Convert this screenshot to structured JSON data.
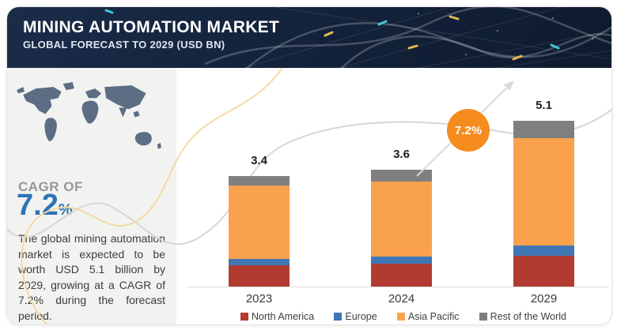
{
  "header": {
    "title": "MINING AUTOMATION MARKET",
    "subtitle": "GLOBAL FORECAST TO 2029 (USD BN)"
  },
  "sidebar": {
    "cagr_label": "CAGR OF",
    "cagr_value": "7.2",
    "cagr_unit": "%",
    "description": "The global mining automation market is expected to be worth USD 5.1 billion by 2029, growing at a CAGR of 7.2% during the forecast period."
  },
  "growth_badge": {
    "text": "7.2%"
  },
  "chart_data": {
    "type": "bar",
    "stacked": true,
    "title": "Mining Automation Market, Global Forecast to 2029 (USD BN)",
    "categories": [
      "2023",
      "2024",
      "2029"
    ],
    "series": [
      {
        "name": "North America",
        "color": "#b23b31",
        "values": [
          0.65,
          0.7,
          0.95
        ]
      },
      {
        "name": "Europe",
        "color": "#3f76b4",
        "values": [
          0.2,
          0.22,
          0.32
        ]
      },
      {
        "name": "Asia Pacific",
        "color": "#f9a14d",
        "values": [
          2.25,
          2.3,
          3.3
        ]
      },
      {
        "name": "Rest of the World",
        "color": "#7f7f7f",
        "values": [
          0.3,
          0.38,
          0.53
        ]
      }
    ],
    "totals": [
      "3.4",
      "3.6",
      "5.1"
    ],
    "unit": "USD BN",
    "grid": false,
    "legend_position": "bottom",
    "annotation": {
      "label": "7.2%",
      "meaning": "CAGR growth arrow from 2024 to 2029"
    }
  },
  "colors": {
    "header_bg": "#16263f",
    "sidebar_bg": "#f2f2f1",
    "cagr_blue": "#2e74b5",
    "badge_orange": "#f68b1e",
    "map_slate": "#5c6d84",
    "wave_yellow": "#f3daa4",
    "wave_gray": "#d6d6d6"
  }
}
